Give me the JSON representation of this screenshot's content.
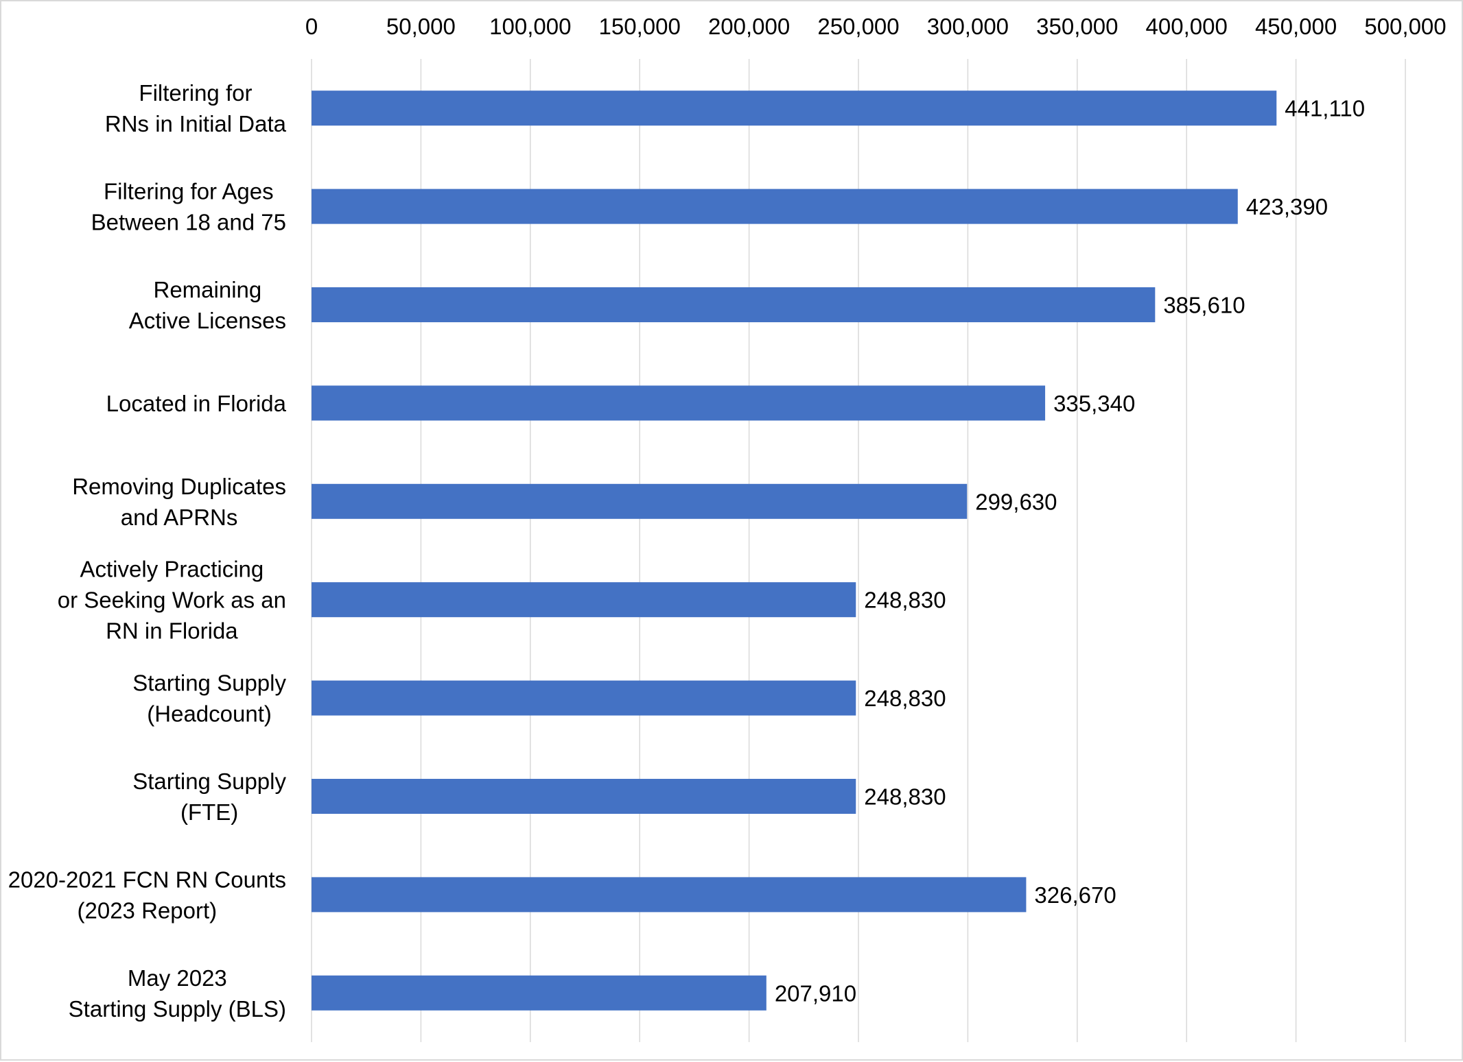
{
  "chart_data": {
    "type": "bar",
    "orientation": "horizontal",
    "title": "",
    "xlabel": "",
    "ylabel": "",
    "xlim": [
      0,
      500000
    ],
    "x_ticks": [
      0,
      50000,
      100000,
      150000,
      200000,
      250000,
      300000,
      350000,
      400000,
      450000,
      500000
    ],
    "x_tick_labels": [
      "0",
      "50,000",
      "100,000",
      "150,000",
      "200,000",
      "250,000",
      "300,000",
      "350,000",
      "400,000",
      "450,000",
      "500,000"
    ],
    "x_axis_position": "top",
    "grid": true,
    "legend": "none",
    "categories": [
      [
        "Filtering for",
        "RNs in Initial Data"
      ],
      [
        "Filtering for Ages",
        "Between 18 and 75"
      ],
      [
        "Remaining",
        "Active Licenses"
      ],
      [
        "Located in Florida"
      ],
      [
        "Removing Duplicates",
        "and APRNs"
      ],
      [
        "Actively Practicing",
        "or Seeking Work as an",
        "RN in Florida"
      ],
      [
        "Starting Supply",
        "(Headcount)"
      ],
      [
        "Starting Supply",
        "(FTE)"
      ],
      [
        "2020-2021 FCN RN Counts",
        "(2023 Report)"
      ],
      [
        "May 2023",
        "Starting Supply (BLS)"
      ]
    ],
    "values": [
      441110,
      423390,
      385610,
      335340,
      299630,
      248830,
      248830,
      248830,
      326670,
      207910
    ],
    "value_labels": [
      "441,110",
      "423,390",
      "385,610",
      "335,340",
      "299,630",
      "248,830",
      "248,830",
      "248,830",
      "326,670",
      "207,910"
    ],
    "colors": {
      "bar": "#4472C4",
      "grid": "#d9d9d9",
      "text": "#000000",
      "border": "#d9d9d9"
    }
  }
}
